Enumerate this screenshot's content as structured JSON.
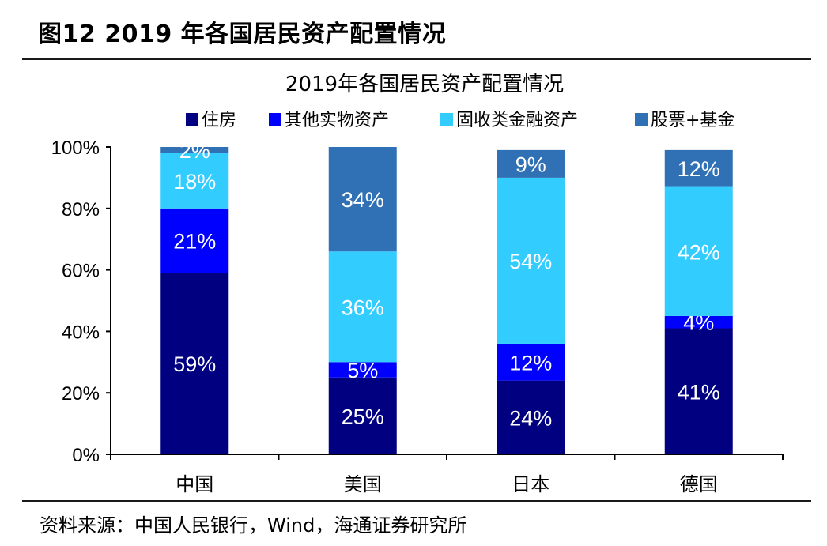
{
  "header": {
    "figure_title": "图12 2019 年各国居民资产配置情况"
  },
  "footer": {
    "source": "资料来源：中国人民银行，Wind，海通证券研究所"
  },
  "chart_data": {
    "type": "bar",
    "stacked": true,
    "title": "2019年各国居民资产配置情况",
    "categories": [
      "中国",
      "美国",
      "日本",
      "德国"
    ],
    "series": [
      {
        "name": "住房",
        "color": "#000080",
        "values": [
          59,
          25,
          24,
          41
        ],
        "labels": [
          "59%",
          "25%",
          "24%",
          "41%"
        ]
      },
      {
        "name": "其他实物资产",
        "color": "#0000ff",
        "values": [
          21,
          5,
          12,
          4
        ],
        "labels": [
          "21%",
          "5%",
          "12%",
          "4%"
        ]
      },
      {
        "name": "固收类金融资产",
        "color": "#33ccff",
        "values": [
          18,
          36,
          54,
          42
        ],
        "labels": [
          "18%",
          "36%",
          "54%",
          "42%"
        ]
      },
      {
        "name": "股票+基金",
        "color": "#3070b4",
        "values": [
          2,
          34,
          9,
          12
        ],
        "labels": [
          "2%",
          "34%",
          "9%",
          "12%"
        ]
      }
    ],
    "ylim": [
      0,
      100
    ],
    "yticks": [
      "0%",
      "20%",
      "40%",
      "60%",
      "80%",
      "100%"
    ],
    "legend_position": "top",
    "grid": false
  }
}
